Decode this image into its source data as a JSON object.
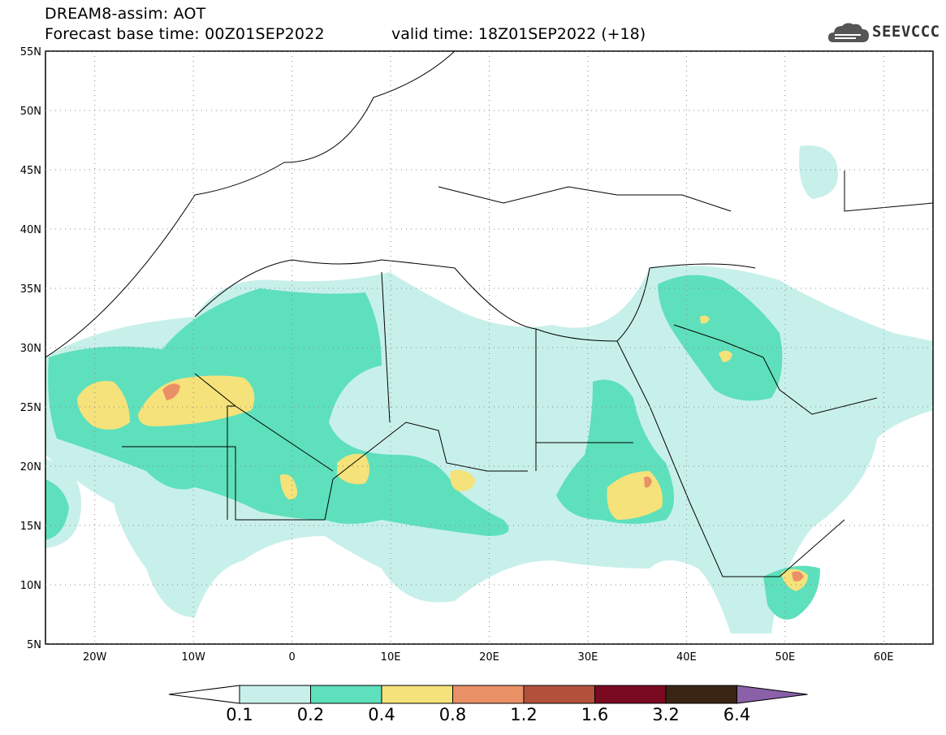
{
  "header": {
    "title_line1": "DREAM8-assim: AOT",
    "title_line2": "Forecast base time: 00Z01SEP2022",
    "valid_time": "valid time: 18Z01SEP2022 (+18)",
    "logo_text": "SEEVCCC",
    "logo_icon": "cloud-logo-icon"
  },
  "map": {
    "projection": "lat-lon",
    "lon_range": [
      -25,
      65
    ],
    "lat_range": [
      5,
      55
    ],
    "lat_labels": [
      "5N",
      "10N",
      "15N",
      "20N",
      "25N",
      "30N",
      "35N",
      "40N",
      "45N",
      "50N",
      "55N"
    ],
    "lon_labels": [
      "20W",
      "10W",
      "0",
      "10E",
      "20E",
      "30E",
      "40E",
      "50E",
      "60E"
    ],
    "grid": "dotted"
  },
  "colorbar": {
    "levels": [
      "0.1",
      "0.2",
      "0.4",
      "0.8",
      "1.2",
      "1.6",
      "3.2",
      "6.4"
    ],
    "colors": [
      "#ffffff",
      "#c8f0ea",
      "#5ee0bc",
      "#f5e27a",
      "#ea9066",
      "#b3503c",
      "#7a0a22",
      "#3a2414",
      "#8a60a8"
    ]
  }
}
